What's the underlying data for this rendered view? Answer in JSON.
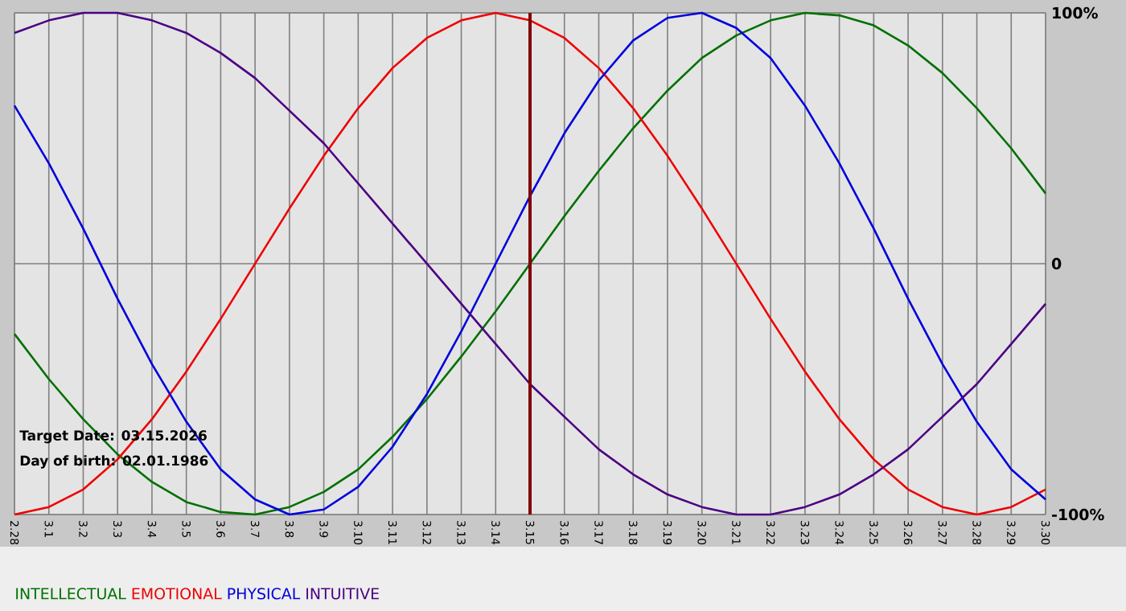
{
  "chart_data": {
    "type": "line",
    "categories": [
      "2.28",
      "3.1",
      "3.2",
      "3.3",
      "3.4",
      "3.5",
      "3.6",
      "3.7",
      "3.8",
      "3.9",
      "3.10",
      "3.11",
      "3.12",
      "3.13",
      "3.14",
      "3.15",
      "3.16",
      "3.17",
      "3.18",
      "3.19",
      "3.20",
      "3.21",
      "3.22",
      "3.23",
      "3.24",
      "3.25",
      "3.26",
      "3.27",
      "3.28",
      "3.29",
      "3.30"
    ],
    "series": [
      {
        "name": "INTELLECTUAL",
        "color": "#007000",
        "values": [
          -28,
          -46,
          -62,
          -76,
          -87,
          -95,
          -99,
          -100,
          -97,
          -91,
          -82,
          -69,
          -54,
          -37,
          -19,
          0,
          19,
          37,
          54,
          69,
          82,
          91,
          97,
          100,
          99,
          95,
          87,
          76,
          62,
          46,
          28
        ]
      },
      {
        "name": "EMOTIONAL",
        "color": "#ee0000",
        "values": [
          -100,
          -97,
          -90,
          -78,
          -62,
          -43,
          -22,
          0,
          22,
          43,
          62,
          78,
          90,
          97,
          100,
          97,
          90,
          78,
          62,
          43,
          22,
          0,
          -22,
          -43,
          -62,
          -78,
          -90,
          -97,
          -100,
          -97,
          -90
        ]
      },
      {
        "name": "PHYSICAL",
        "color": "#0000dd",
        "values": [
          63,
          40,
          14,
          -14,
          -40,
          -63,
          -82,
          -94,
          -100,
          -98,
          -89,
          -73,
          -52,
          -27,
          0,
          27,
          52,
          73,
          89,
          98,
          100,
          94,
          82,
          63,
          40,
          14,
          -14,
          -40,
          -63,
          -82,
          -94
        ]
      },
      {
        "name": "INTUITIVE",
        "color": "#4b0082",
        "values": [
          92,
          97,
          100,
          100,
          97,
          92,
          84,
          74,
          61,
          48,
          32,
          16,
          0,
          -16,
          -32,
          -48,
          -61,
          -74,
          -84,
          -92,
          -97,
          -100,
          -100,
          -97,
          -92,
          -84,
          -74,
          -61,
          -48,
          -32,
          -16
        ]
      }
    ],
    "ylim": [
      -100,
      100
    ],
    "yticks": [
      {
        "value": 100,
        "label": "100%"
      },
      0,
      {
        "value": -100,
        "label": "-100%"
      }
    ],
    "grid": true,
    "legend": "bottom left",
    "ref_lines": [
      {
        "axis": "x",
        "value": "3.15",
        "color": "#800000"
      }
    ],
    "annotations": [
      "Target Date: 03.15.2026",
      "Day of birth: 02.01.1986"
    ]
  }
}
